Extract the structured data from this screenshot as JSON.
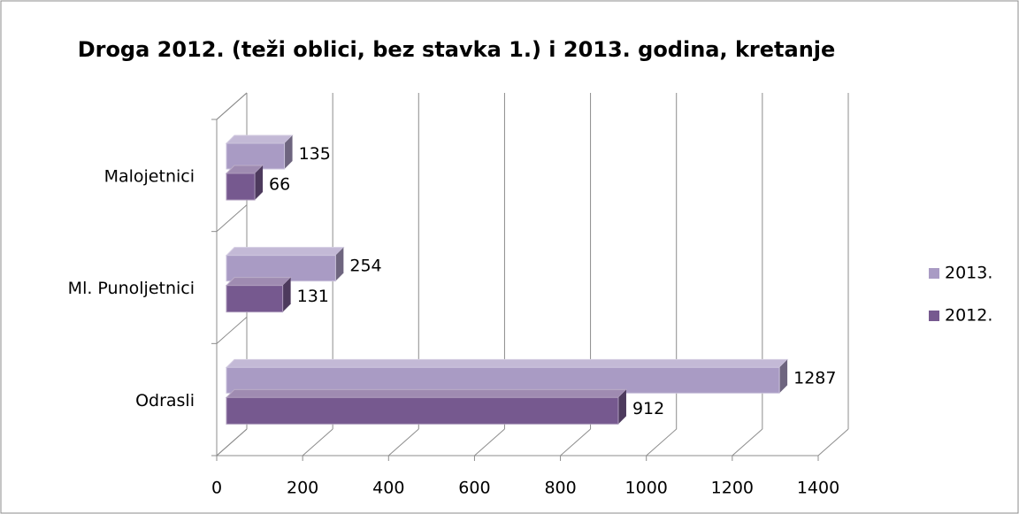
{
  "chart_data": {
    "type": "bar",
    "orientation": "horizontal",
    "three_d": true,
    "title": "Droga 2012. (teži oblici, bez stavka 1.) i 2013. godina, kretanje",
    "categories": [
      "Malojetnici",
      "Ml. Punoljetnici",
      "Odrasli"
    ],
    "series": [
      {
        "name": "2013.",
        "color": "#a99bc4",
        "values": [
          135,
          254,
          1287
        ]
      },
      {
        "name": "2012.",
        "color": "#76598f",
        "values": [
          66,
          131,
          912
        ]
      }
    ],
    "xlim": [
      0,
      1400
    ],
    "xticks": [
      0,
      200,
      400,
      600,
      800,
      1000,
      1200,
      1400
    ],
    "grid": true,
    "legend": "right"
  }
}
